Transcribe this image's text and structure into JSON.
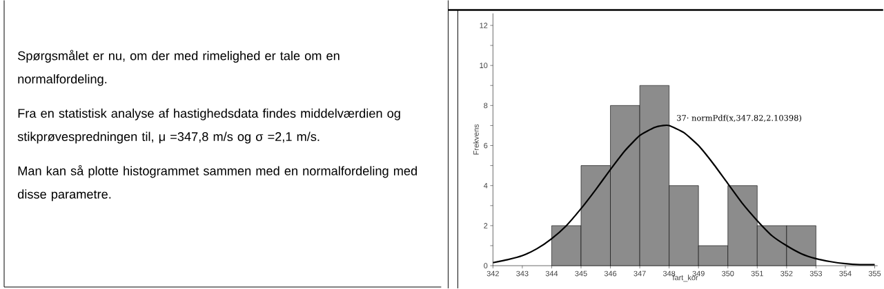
{
  "chart_data": {
    "type": "histogram",
    "xlabel": "fart_kor",
    "ylabel": "Frekvens",
    "xlim": [
      342,
      355.1
    ],
    "ylim": [
      0,
      12.6
    ],
    "xticks": [
      342,
      343,
      344,
      345,
      346,
      347,
      348,
      349,
      350,
      351,
      352,
      353,
      354,
      355
    ],
    "yticks": [
      0,
      {
        "value": 1,
        "label": null
      },
      2,
      {
        "value": 3,
        "label": null
      },
      4,
      {
        "value": 5,
        "label": null
      },
      6,
      {
        "value": 7,
        "label": null
      },
      8,
      {
        "value": 9,
        "label": null
      },
      10,
      {
        "value": 11,
        "label": null
      },
      12
    ],
    "series": [
      {
        "color": "#8c8c8c",
        "bins": [
          344,
          345,
          346,
          347,
          348,
          349,
          350,
          351,
          352,
          353
        ],
        "values": [
          2,
          5,
          8,
          9,
          4,
          1,
          4,
          2,
          2
        ]
      },
      {
        "type": "line",
        "color": "#000000",
        "x": [
          342,
          342.5,
          343,
          343.5,
          344,
          344.5,
          345,
          345.5,
          346,
          346.5,
          347,
          347.5,
          347.8,
          348,
          348.5,
          349,
          349.5,
          350,
          350.5,
          351,
          351.5,
          352,
          352.5,
          353,
          353.5,
          354,
          354.5,
          355
        ],
        "values": [
          0.15,
          0.3,
          0.5,
          0.85,
          1.35,
          2.0,
          2.85,
          3.8,
          4.8,
          5.75,
          6.5,
          6.9,
          7.0,
          7.0,
          6.65,
          6.0,
          5.1,
          4.1,
          3.1,
          2.25,
          1.5,
          1.0,
          0.6,
          0.35,
          0.2,
          0.1,
          0.05,
          0.05
        ]
      }
    ],
    "annotations": [
      "Spørgsmålet er nu, om der med rimelighed er tale om en normalfordeling.",
      "Fra en statistisk analyse af hastighedsdata findes middelværdien og stikprøvespredningen til, μ =347,8 m/s og σ =2,1 m/s.",
      "Man kan så plotte histogrammet sammen med en normalfordeling med disse parametre.",
      "37· normPdf(x,347.82,2.10398)"
    ]
  }
}
